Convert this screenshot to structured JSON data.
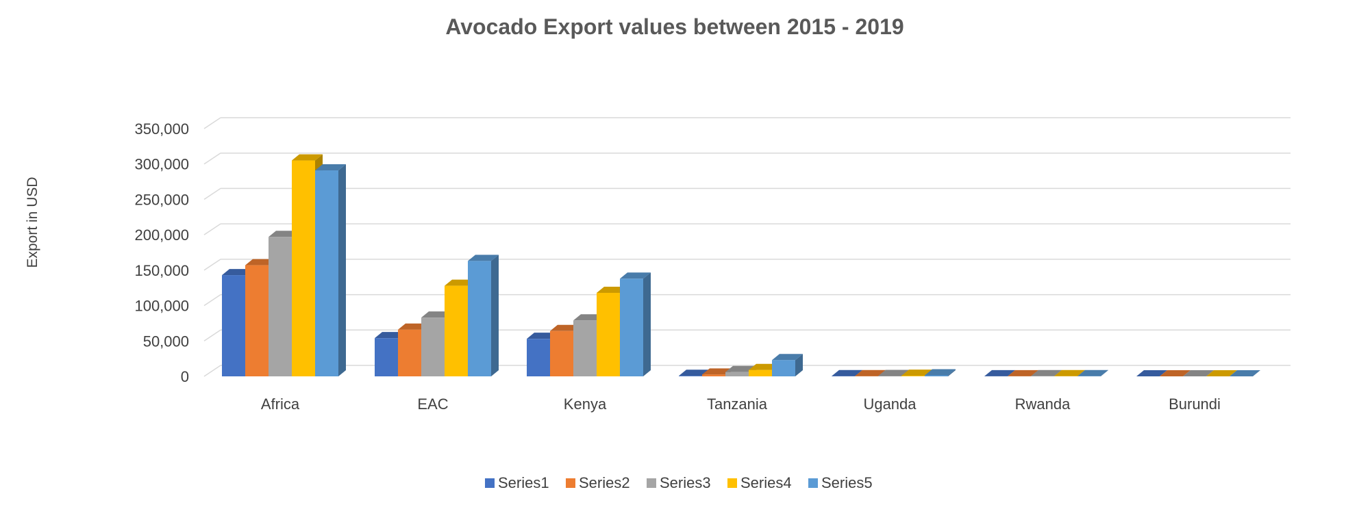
{
  "chart_data": {
    "type": "bar",
    "title": "Avocado Export values between 2015 - 2019",
    "xlabel": "",
    "ylabel": "Export in USD",
    "categories": [
      "Africa",
      "EAC",
      "Kenya",
      "Tanzania",
      "Uganda",
      "Rwanda",
      "Burundi"
    ],
    "series": [
      {
        "name": "Series1",
        "color": "#4472C4",
        "values": [
          143000,
          54000,
          53000,
          700,
          300,
          100,
          50
        ]
      },
      {
        "name": "Series2",
        "color": "#ED7D31",
        "values": [
          157000,
          66000,
          64000,
          2500,
          300,
          100,
          50
        ]
      },
      {
        "name": "Series3",
        "color": "#A5A5A5",
        "values": [
          197000,
          83000,
          79000,
          6000,
          500,
          200,
          50
        ]
      },
      {
        "name": "Series4",
        "color": "#FFC000",
        "values": [
          305000,
          128000,
          118000,
          9000,
          800,
          200,
          50
        ]
      },
      {
        "name": "Series5",
        "color": "#5B9BD5",
        "values": [
          291000,
          163000,
          138000,
          23000,
          1500,
          300,
          50
        ]
      }
    ],
    "ylim": [
      0,
      350000
    ],
    "yticks": [
      "0",
      "50,000",
      "100,000",
      "150,000",
      "200,000",
      "250,000",
      "300,000",
      "350,000"
    ],
    "grid": true,
    "legend": "bottom",
    "style": "3d-clustered-column"
  }
}
